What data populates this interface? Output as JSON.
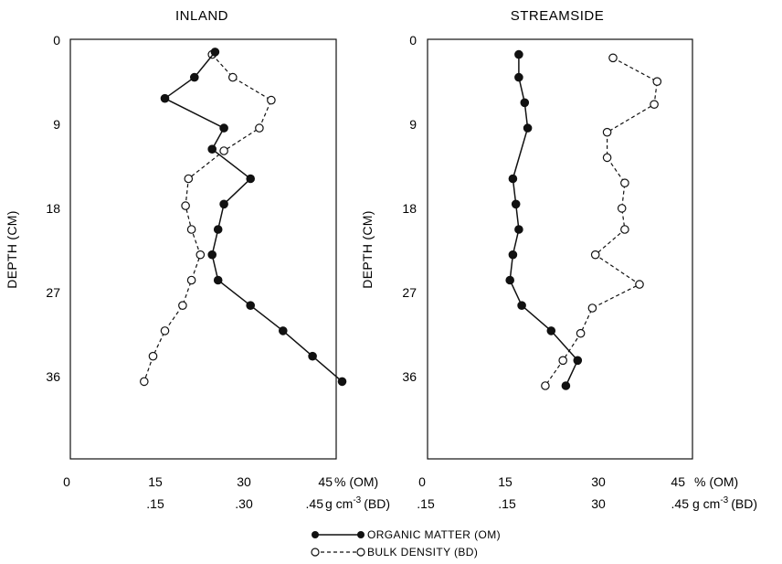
{
  "chart_data": [
    {
      "type": "line",
      "title": "INLAND",
      "ylabel": "DEPTH (CM)",
      "y_ticks": [
        "0",
        "9",
        "18",
        "27",
        "36"
      ],
      "y_range": [
        0,
        45
      ],
      "x_ticks_om": [
        "0",
        "15",
        "30",
        "45"
      ],
      "x_unit_om": "% (OM)",
      "x_ticks_bd": [
        ".15",
        ".30",
        ".45"
      ],
      "x_unit_bd": "g cm",
      "x_unit_bd_exp": "-3",
      "x_unit_bd_tail": "(BD)",
      "x_range": [
        0,
        45
      ],
      "series": [
        {
          "name": "ORGANIC MATTER (OM)",
          "x": [
            24.5,
            21,
            16,
            26,
            24,
            30.5,
            26,
            25,
            24,
            25,
            30.5,
            36,
            41,
            46
          ],
          "y": [
            1.5,
            4.5,
            7,
            10.5,
            13,
            16.5,
            19.5,
            22.5,
            25.5,
            28.5,
            31.5,
            34.5,
            37.5,
            40.5
          ]
        },
        {
          "name": "BULK DENSITY (BD)",
          "x": [
            24,
            27.5,
            34,
            32,
            26,
            20,
            19.5,
            20.5,
            22,
            20.5,
            19,
            16,
            14,
            12.5
          ],
          "y": [
            1.8,
            4.5,
            7.2,
            10.5,
            13.2,
            16.5,
            19.7,
            22.5,
            25.5,
            28.5,
            31.5,
            34.5,
            37.5,
            40.5
          ]
        }
      ]
    },
    {
      "type": "line",
      "title": "STREAMSIDE",
      "ylabel": "DEPTH (CM)",
      "y_ticks": [
        "0",
        "9",
        "18",
        "27",
        "36"
      ],
      "y_range": [
        0,
        45
      ],
      "x_ticks_om": [
        "0",
        "15",
        "30",
        "45"
      ],
      "x_unit_om": "% (OM)",
      "x_ticks_bd": [
        ".15",
        ".15",
        "30",
        ".45"
      ],
      "x_unit_bd": "g cm",
      "x_unit_bd_exp": "-3",
      "x_unit_bd_tail": "(BD)",
      "x_range": [
        0,
        45
      ],
      "series": [
        {
          "name": "ORGANIC MATTER (OM)",
          "x": [
            15.5,
            15.5,
            16.5,
            17,
            14.5,
            15,
            15.5,
            14.5,
            14,
            16,
            21,
            25.5,
            23.5
          ],
          "y": [
            1.8,
            4.5,
            7.5,
            10.5,
            16.5,
            19.5,
            22.5,
            25.5,
            28.5,
            31.5,
            34.5,
            38,
            41
          ]
        },
        {
          "name": "BULK DENSITY (BD)",
          "x": [
            31.5,
            39,
            38.5,
            30.5,
            30.5,
            33.5,
            33,
            33.5,
            28.5,
            36,
            28,
            26,
            23,
            20
          ],
          "y": [
            2.2,
            5,
            7.7,
            11,
            14,
            17,
            20,
            22.5,
            25.5,
            29,
            31.8,
            34.8,
            38,
            41
          ]
        }
      ]
    }
  ],
  "legend": {
    "om_label": "ORGANIC MATTER (OM)",
    "bd_label": "BULK DENSITY (BD)"
  }
}
